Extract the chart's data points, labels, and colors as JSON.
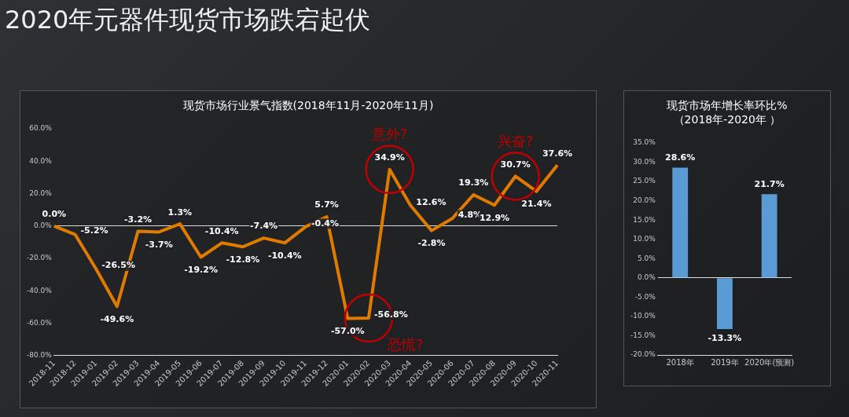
{
  "chart_data": [
    {
      "type": "line",
      "title": "2020年元器件现货市场跌宕起伏",
      "subtitle": "现货市场行业景气指数(2018年11月-2020年11月)",
      "categories": [
        "2018-11",
        "2018-12",
        "2019-01",
        "2019-02",
        "2019-03",
        "2019-04",
        "2019-05",
        "2019-06",
        "2019-07",
        "2019-08",
        "2019-09",
        "2019-10",
        "2019-11",
        "2019-12",
        "2020-01",
        "2020-02",
        "2020-03",
        "2020-04",
        "2020-05",
        "2020-06",
        "2020-07",
        "2020-08",
        "2020-09",
        "2020-10",
        "2020-11"
      ],
      "series": [
        {
          "color": "#e07b00",
          "values": [
            0,
            -5.2,
            -26.5,
            -49.6,
            -3.2,
            -3.7,
            1.3,
            -19.2,
            -10.4,
            -12.8,
            -7.4,
            -10.4,
            -0.4,
            5.7,
            -57.0,
            -56.8,
            34.9,
            12.6,
            -2.8,
            4.8,
            19.3,
            12.9,
            30.7,
            21.4,
            37.6
          ],
          "value_labels": [
            "0.0%",
            "-5.2%",
            "-26.5%",
            "-49.6%",
            "-3.2%",
            "-3.7%",
            "1.3%",
            "-19.2%",
            "-10.4%",
            "-12.8%",
            "-7.4%",
            "-10.4%",
            "-0.4%",
            "5.7%",
            "-57.0%",
            "-56.8%",
            "34.9%",
            "12.6%",
            "-2.8%",
            "4.8%",
            "19.3%",
            "12.9%",
            "30.7%",
            "21.4%",
            "37.6%"
          ]
        }
      ],
      "ylim": [
        -80,
        60
      ],
      "yticks": [
        {
          "value": -80,
          "label": "-80.0%"
        },
        {
          "value": -60,
          "label": "-60.0%"
        },
        {
          "value": -40,
          "label": "-40.0%"
        },
        {
          "value": -20,
          "label": "-20.0%"
        },
        {
          "value": 0,
          "label": "0.0%"
        },
        {
          "value": 20,
          "label": "20.0%"
        },
        {
          "value": 40,
          "label": "40.0%"
        },
        {
          "value": 60,
          "label": "60.0%"
        }
      ],
      "marker": "none",
      "annotations": [
        {
          "text": "意外?",
          "x": "2020-03",
          "y": 34.9
        },
        {
          "text": "兴奋?",
          "x": "2020-09",
          "y": 30.7
        },
        {
          "text": "恐慌?",
          "x": "2020-02",
          "y": -56.8
        }
      ]
    },
    {
      "type": "bar",
      "title": "现货市场年增长率环比%",
      "subtitle": "（2018年-2020年 ）",
      "categories": [
        "2018年",
        "2019年",
        "2020年(预测)"
      ],
      "series": [
        {
          "color": "#5b9bd5",
          "values": [
            28.6,
            -13.3,
            21.7
          ],
          "value_labels": [
            "28.6%",
            "-13.3%",
            "21.7%"
          ]
        }
      ],
      "ylim": [
        -20,
        35
      ],
      "yticks": [
        {
          "value": -20,
          "label": "-20.0%"
        },
        {
          "value": -15,
          "label": "-15.0%"
        },
        {
          "value": -10,
          "label": "-10.0%"
        },
        {
          "value": -5,
          "label": "-5.0%"
        },
        {
          "value": 0,
          "label": "0.0%"
        },
        {
          "value": 5,
          "label": "5.0%"
        },
        {
          "value": 10,
          "label": "10.0%"
        },
        {
          "value": 15,
          "label": "15.0%"
        },
        {
          "value": 20,
          "label": "20.0%"
        },
        {
          "value": 25,
          "label": "25.0%"
        },
        {
          "value": 30,
          "label": "30.0%"
        },
        {
          "value": 35,
          "label": "35.0%"
        }
      ]
    }
  ]
}
